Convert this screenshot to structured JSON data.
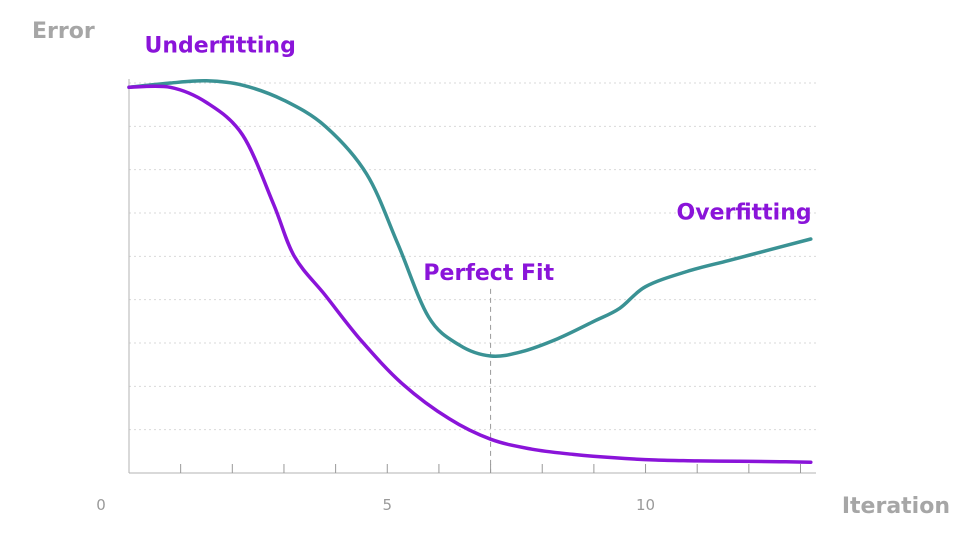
{
  "chart_data": {
    "type": "line",
    "title": "",
    "xlabel": "Iteration",
    "ylabel": "Error",
    "xlim": [
      0,
      13.3
    ],
    "ylim": [
      0,
      9
    ],
    "x_ticks": [
      1,
      2,
      3,
      4,
      5,
      6,
      7,
      8,
      9,
      10,
      11,
      12,
      13
    ],
    "x_tick_labels": [
      {
        "x": 0,
        "label": "0"
      },
      {
        "x": 5,
        "label": "5"
      },
      {
        "x": 10,
        "label": "10"
      }
    ],
    "y_grid": [
      1,
      2,
      3,
      4,
      5,
      6,
      7,
      8,
      9
    ],
    "grid": true,
    "series": [
      {
        "color": "#3a9294",
        "x": [
          0,
          0.8,
          1.5,
          2.2,
          3.0,
          3.8,
          4.6,
          5.2,
          5.8,
          6.4,
          7.0,
          7.6,
          8.3,
          9.0,
          9.5,
          10.0,
          10.8,
          11.6,
          12.4,
          13.2
        ],
        "y": [
          8.9,
          9.0,
          9.05,
          8.95,
          8.6,
          8.0,
          6.9,
          5.3,
          3.6,
          2.95,
          2.7,
          2.8,
          3.1,
          3.5,
          3.8,
          4.3,
          4.65,
          4.9,
          5.15,
          5.4
        ]
      },
      {
        "color": "#8a14d9",
        "x": [
          0,
          0.8,
          1.5,
          2.2,
          2.8,
          3.2,
          3.8,
          4.5,
          5.3,
          6.2,
          7.0,
          7.8,
          8.6,
          9.4,
          10.2,
          11.0,
          11.8,
          12.6,
          13.2
        ],
        "y": [
          8.9,
          8.9,
          8.55,
          7.8,
          6.2,
          5.0,
          4.1,
          3.05,
          2.05,
          1.25,
          0.78,
          0.55,
          0.43,
          0.35,
          0.3,
          0.28,
          0.27,
          0.26,
          0.25
        ]
      }
    ],
    "annotations": [
      {
        "text": "Underfitting",
        "x": 0.3,
        "y": 9.7
      },
      {
        "text": "Perfect Fit",
        "x": 5.7,
        "y": 4.45
      },
      {
        "text": "Overfitting",
        "x": 10.6,
        "y": 5.85
      }
    ],
    "perfect_fit_line": {
      "x": 7.0,
      "y_top": 4.25
    },
    "colors": {
      "annotation": "#8a14d9",
      "axis_title": "#a6a6a6"
    }
  }
}
